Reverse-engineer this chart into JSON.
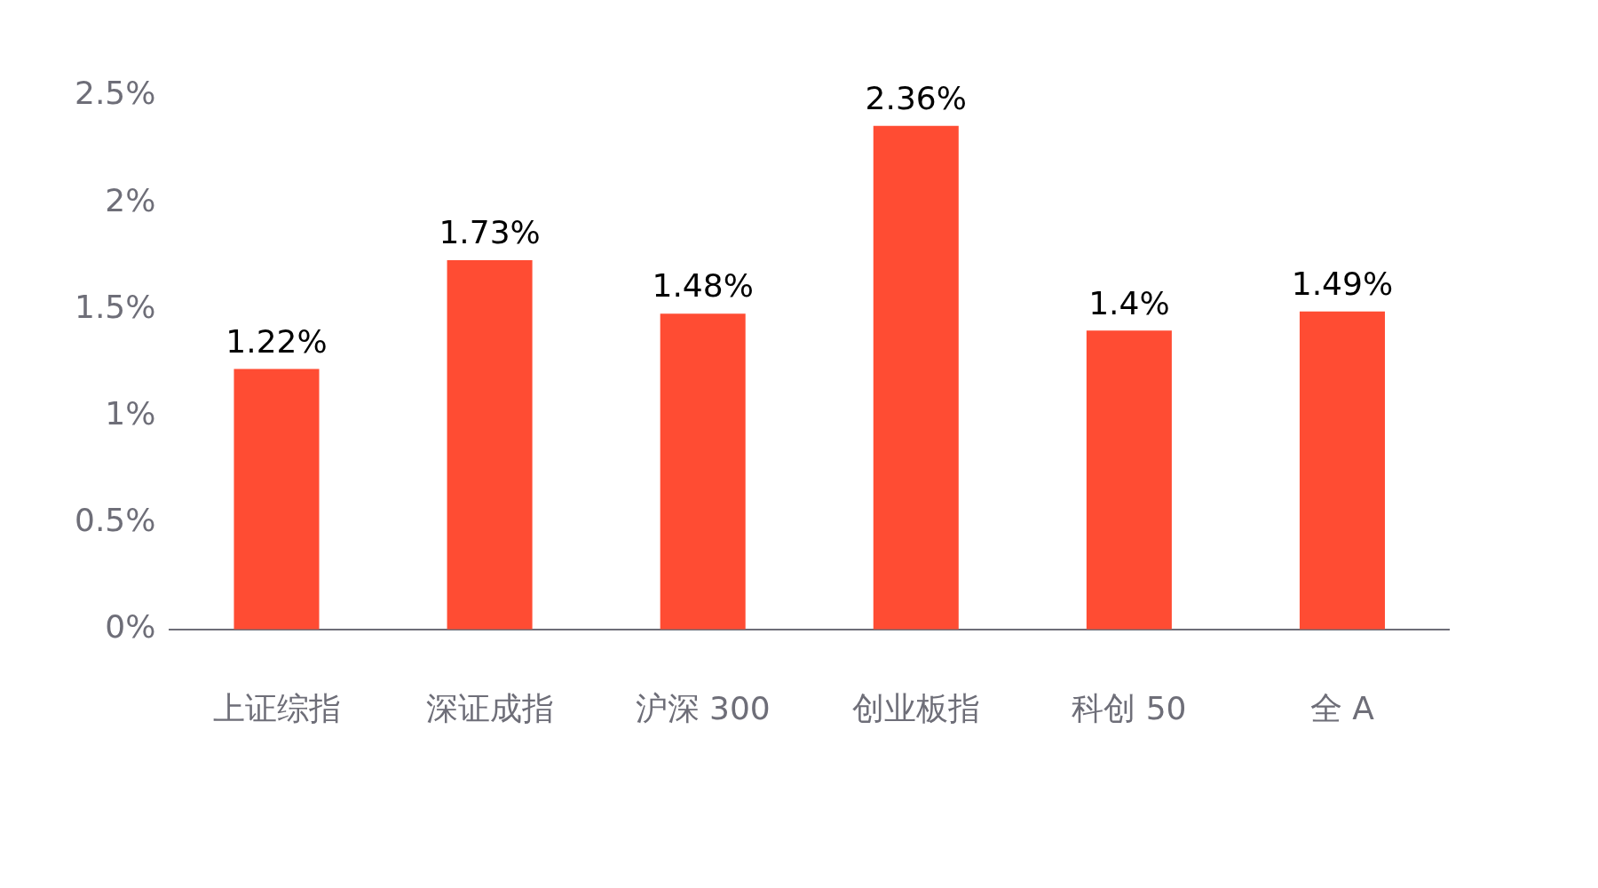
{
  "chart_data": {
    "type": "bar",
    "categories": [
      "上证综指",
      "深证成指",
      "沪深 300",
      "创业板指",
      "科创 50",
      "全 A"
    ],
    "values": [
      1.22,
      1.73,
      1.48,
      2.36,
      1.4,
      1.49
    ],
    "color": "#ff4c33",
    "ylim": [
      0,
      2.5
    ],
    "yticks": [
      {
        "value": 0,
        "label": "0%"
      },
      {
        "value": 0.5,
        "label": "0.5%"
      },
      {
        "value": 1,
        "label": "1%"
      },
      {
        "value": 1.5,
        "label": "1.5%"
      },
      {
        "value": 2,
        "label": "2%"
      },
      {
        "value": 2.5,
        "label": "2.5%"
      }
    ],
    "value_labels": [
      "1.22%",
      "1.73%",
      "1.48%",
      "2.36%",
      "1.4%",
      "1.49%"
    ],
    "grid": false,
    "legend": false
  }
}
